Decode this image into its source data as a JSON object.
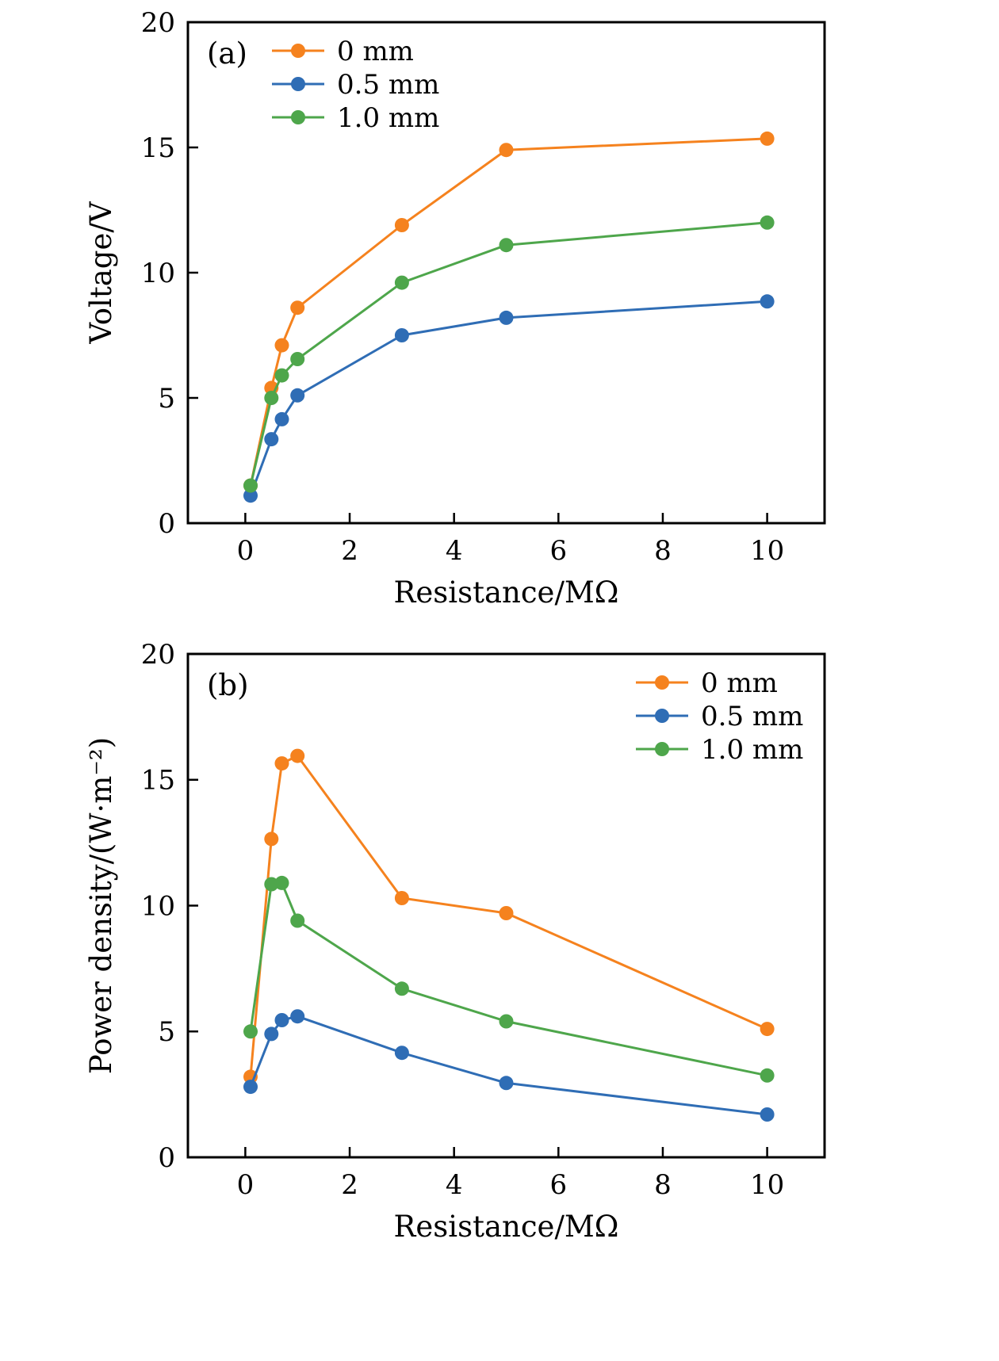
{
  "page": {
    "background": "#ffffff",
    "axis_color": "#000000"
  },
  "chart_data": [
    {
      "type": "line",
      "panel_label": "(a)",
      "xlabel": "Resistance/MΩ",
      "ylabel": "Voltage/V",
      "xlim": [
        -1.1,
        11.1
      ],
      "ylim": [
        0,
        20
      ],
      "xticks": [
        0,
        2,
        4,
        6,
        8,
        10
      ],
      "yticks": [
        0,
        5,
        10,
        15,
        20
      ],
      "grid": false,
      "legend_position": "top-left",
      "x": [
        0.1,
        0.5,
        0.7,
        1,
        3,
        5,
        10
      ],
      "series": [
        {
          "name": "0 mm",
          "color": "#f5821e",
          "values": [
            1.5,
            5.4,
            7.1,
            8.6,
            11.9,
            14.9,
            15.35
          ]
        },
        {
          "name": "0.5 mm",
          "color": "#2f6db5",
          "values": [
            1.1,
            3.35,
            4.15,
            5.1,
            7.5,
            8.2,
            8.85
          ]
        },
        {
          "name": "1.0 mm",
          "color": "#4ea64b",
          "values": [
            1.5,
            5.0,
            5.9,
            6.55,
            9.6,
            11.1,
            12.0
          ]
        }
      ]
    },
    {
      "type": "line",
      "panel_label": "(b)",
      "xlabel": "Resistance/MΩ",
      "ylabel": "Power density/(W·m⁻²)",
      "xlim": [
        -1.1,
        11.1
      ],
      "ylim": [
        0,
        20
      ],
      "xticks": [
        0,
        2,
        4,
        6,
        8,
        10
      ],
      "yticks": [
        0,
        5,
        10,
        15,
        20
      ],
      "grid": false,
      "legend_position": "top-right",
      "x": [
        0.1,
        0.5,
        0.7,
        1,
        3,
        5,
        10
      ],
      "series": [
        {
          "name": "0 mm",
          "color": "#f5821e",
          "values": [
            3.2,
            12.65,
            15.65,
            15.95,
            10.3,
            9.7,
            5.1
          ]
        },
        {
          "name": "0.5 mm",
          "color": "#2f6db5",
          "values": [
            2.8,
            4.9,
            5.45,
            5.6,
            4.15,
            2.95,
            1.7
          ]
        },
        {
          "name": "1.0 mm",
          "color": "#4ea64b",
          "values": [
            5.0,
            10.85,
            10.9,
            9.4,
            6.7,
            5.4,
            3.25
          ]
        }
      ]
    }
  ]
}
